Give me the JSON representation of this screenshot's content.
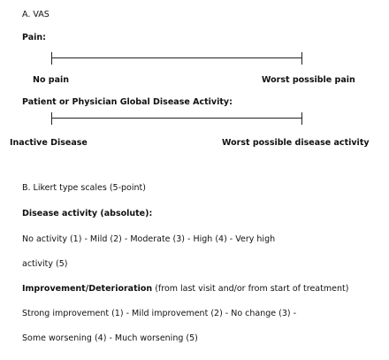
{
  "vas": {
    "heading": "A. VAS",
    "pain": {
      "label": "Pain:",
      "left_anchor": "No pain",
      "right_anchor": "Worst possible pain"
    },
    "global": {
      "label": "Patient or Physician Global Disease Activity:",
      "left_anchor": "Inactive Disease",
      "right_anchor": "Worst possible disease activity"
    }
  },
  "likert": {
    "heading": "B. Likert type scales (5-point)",
    "disease_activity": {
      "label": "Disease activity (absolute):",
      "line1": "No activity (1) - Mild (2) - Moderate (3) - High (4) - Very high",
      "line2": "activity (5)"
    },
    "improvement": {
      "label": "Improvement/Deterioration",
      "note": " (from last visit and/or from start of treatment)",
      "line1": "Strong improvement (1) - Mild improvement (2) - No change (3) -",
      "line2": "Some worsening (4) - Much worsening (5)"
    }
  }
}
